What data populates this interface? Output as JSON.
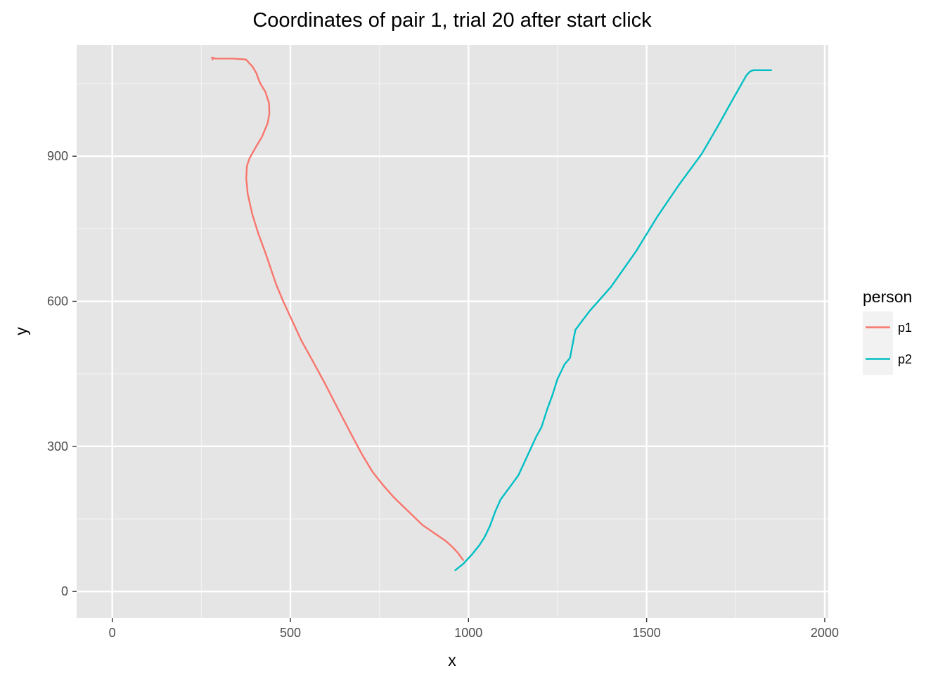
{
  "chart_data": {
    "type": "line",
    "title": "Coordinates of pair 1, trial 20 after start click",
    "xlabel": "x",
    "ylabel": "y",
    "xlim": [
      -100,
      2010
    ],
    "ylim": [
      -55,
      1130
    ],
    "x_ticks": [
      0,
      500,
      1000,
      1500,
      2000
    ],
    "y_ticks": [
      0,
      300,
      600,
      900
    ],
    "x_tick_labels": [
      "0",
      "500",
      "1000",
      "1500",
      "2000"
    ],
    "y_tick_labels": [
      "0",
      "300",
      "600",
      "900"
    ],
    "grid": true,
    "panel_background": "#e5e5e5",
    "legend": {
      "title": "person",
      "position": "right"
    },
    "series": [
      {
        "name": "p1",
        "color": "#f8766d",
        "points": [
          [
            985,
            65
          ],
          [
            970,
            80
          ],
          [
            955,
            92
          ],
          [
            935,
            105
          ],
          [
            905,
            120
          ],
          [
            870,
            138
          ],
          [
            835,
            163
          ],
          [
            790,
            195
          ],
          [
            760,
            220
          ],
          [
            730,
            248
          ],
          [
            700,
            285
          ],
          [
            665,
            333
          ],
          [
            630,
            383
          ],
          [
            595,
            433
          ],
          [
            560,
            480
          ],
          [
            530,
            520
          ],
          [
            505,
            560
          ],
          [
            480,
            600
          ],
          [
            460,
            635
          ],
          [
            430,
            700
          ],
          [
            410,
            740
          ],
          [
            393,
            780
          ],
          [
            380,
            823
          ],
          [
            376,
            855
          ],
          [
            378,
            880
          ],
          [
            385,
            895
          ],
          [
            400,
            915
          ],
          [
            420,
            940
          ],
          [
            436,
            968
          ],
          [
            441,
            988
          ],
          [
            440,
            1010
          ],
          [
            430,
            1033
          ],
          [
            416,
            1050
          ],
          [
            410,
            1060
          ],
          [
            405,
            1071
          ],
          [
            394,
            1085
          ],
          [
            375,
            1100
          ],
          [
            340,
            1102
          ],
          [
            290,
            1102
          ],
          [
            280,
            1104
          ],
          [
            282,
            1100
          ]
        ]
      },
      {
        "name": "p2",
        "color": "#00bfc4",
        "points": [
          [
            963,
            44
          ],
          [
            985,
            57
          ],
          [
            1008,
            75
          ],
          [
            1030,
            95
          ],
          [
            1045,
            112
          ],
          [
            1060,
            135
          ],
          [
            1075,
            165
          ],
          [
            1090,
            190
          ],
          [
            1105,
            205
          ],
          [
            1120,
            220
          ],
          [
            1140,
            240
          ],
          [
            1165,
            280
          ],
          [
            1190,
            320
          ],
          [
            1205,
            340
          ],
          [
            1220,
            375
          ],
          [
            1235,
            405
          ],
          [
            1250,
            440
          ],
          [
            1270,
            470
          ],
          [
            1285,
            483
          ],
          [
            1300,
            541
          ],
          [
            1340,
            580
          ],
          [
            1400,
            630
          ],
          [
            1470,
            703
          ],
          [
            1530,
            775
          ],
          [
            1590,
            840
          ],
          [
            1655,
            905
          ],
          [
            1700,
            962
          ],
          [
            1740,
            1015
          ],
          [
            1780,
            1067
          ],
          [
            1790,
            1075
          ],
          [
            1800,
            1078
          ],
          [
            1850,
            1078
          ]
        ]
      }
    ]
  }
}
